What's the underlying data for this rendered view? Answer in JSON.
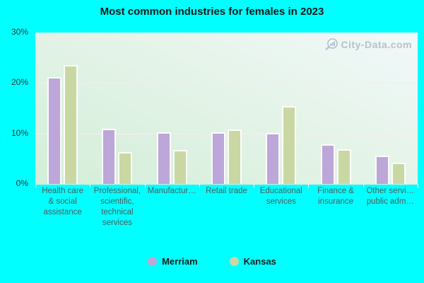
{
  "title": "Most common industries for females in 2023",
  "watermark": "City-Data.com",
  "colors": {
    "background": "#00ffff",
    "merriam": "#bda6d8",
    "kansas": "#c9d8a3",
    "plot_gradient_top": "#f1f8fa",
    "plot_gradient_bottom": "#d3eed8",
    "gridline": "#f5ebf3",
    "axis_text": "#4f5a5a",
    "title_text": "#1a1a1a",
    "watermark_text": "#b1bcc5"
  },
  "chart_data": {
    "type": "bar",
    "title": "Most common industries for females in 2023",
    "categories": [
      "Health care\n& social\nassistance",
      "Professional,\nscientific,\ntechnical\nservices",
      "Manufactur…",
      "Retail trade",
      "Educational\nservices",
      "Finance &\ninsurance",
      "Other servi…\npublic adm…"
    ],
    "series": [
      {
        "name": "Merriam",
        "color": "#bda6d8",
        "values": [
          21.2,
          11.0,
          10.3,
          10.3,
          10.1,
          7.9,
          5.6
        ]
      },
      {
        "name": "Kansas",
        "color": "#c9d8a3",
        "values": [
          23.6,
          6.3,
          6.7,
          10.8,
          15.4,
          6.9,
          4.2
        ]
      }
    ],
    "xlabel": "",
    "ylabel": "",
    "ylim": [
      0,
      30
    ],
    "yticks": [
      0,
      10,
      20,
      30
    ],
    "ytick_labels": [
      "0%",
      "10%",
      "20%",
      "30%"
    ],
    "gridlines": [
      10,
      20
    ],
    "grid": "horizontal",
    "legend_position": "bottom"
  }
}
